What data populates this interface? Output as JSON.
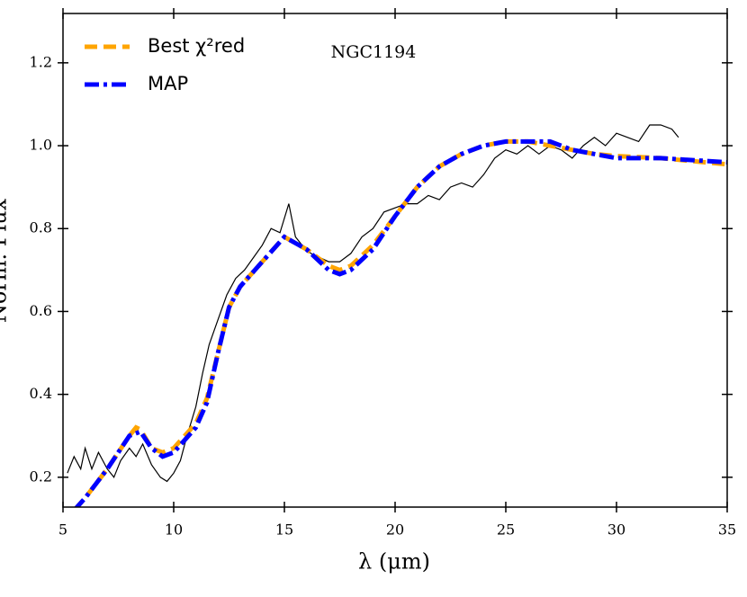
{
  "chart_data": {
    "type": "line",
    "annotation": "NGC1194",
    "xlabel": "λ (μm)",
    "ylabel": "Norm. Flux",
    "xlim": [
      5,
      35
    ],
    "ylim": [
      0.128,
      1.319
    ],
    "xticks": [
      5,
      10,
      15,
      20,
      25,
      30,
      35
    ],
    "yticks": [
      0.2,
      0.4,
      0.6,
      0.8,
      {
        "value": 1.0,
        "label": "1.0"
      },
      1.2
    ],
    "legend": "upper left",
    "series": [
      {
        "color": "#000000",
        "style": "solid",
        "x": [
          5.2,
          5.5,
          5.8,
          6.0,
          6.3,
          6.6,
          7.0,
          7.3,
          7.6,
          8.0,
          8.3,
          8.6,
          9.0,
          9.4,
          9.7,
          10.0,
          10.3,
          10.6,
          11.0,
          11.3,
          11.6,
          12.0,
          12.4,
          12.8,
          13.2,
          13.6,
          14.0,
          14.4,
          14.8,
          15.2,
          15.5,
          15.8,
          16.2,
          16.6,
          17.0,
          17.5,
          18.0,
          18.5,
          19.0,
          19.5,
          20.0,
          20.5,
          21.0,
          21.5,
          22.0,
          22.5,
          23.0,
          23.5,
          24.0,
          24.5,
          25.0,
          25.5,
          26.0,
          26.5,
          27.0,
          27.5,
          28.0,
          28.5,
          29.0,
          29.5,
          30.0,
          30.5,
          31.0,
          31.5,
          32.0,
          32.5,
          32.8
        ],
        "values": [
          0.21,
          0.25,
          0.22,
          0.27,
          0.22,
          0.26,
          0.22,
          0.2,
          0.24,
          0.27,
          0.25,
          0.28,
          0.23,
          0.2,
          0.19,
          0.21,
          0.24,
          0.3,
          0.37,
          0.45,
          0.52,
          0.58,
          0.64,
          0.68,
          0.7,
          0.73,
          0.76,
          0.8,
          0.79,
          0.86,
          0.78,
          0.76,
          0.74,
          0.73,
          0.72,
          0.72,
          0.74,
          0.78,
          0.8,
          0.84,
          0.85,
          0.86,
          0.86,
          0.88,
          0.87,
          0.9,
          0.91,
          0.9,
          0.93,
          0.97,
          0.99,
          0.98,
          1.0,
          0.98,
          1.0,
          0.99,
          0.97,
          1.0,
          1.02,
          1.0,
          1.03,
          1.02,
          1.01,
          1.05,
          1.05,
          1.04,
          1.02
        ]
      },
      {
        "name": "Best χ²red",
        "color": "#ffa500",
        "style": "dashed",
        "x": [
          5.5,
          6,
          7,
          8,
          8.3,
          8.5,
          9,
          9.5,
          10,
          11,
          11.5,
          12,
          12.5,
          13,
          14,
          15,
          16,
          17,
          17.5,
          18,
          19,
          20,
          21,
          22,
          23,
          24,
          25,
          26,
          27,
          28,
          29,
          30,
          32,
          35
        ],
        "values": [
          0.12,
          0.15,
          0.22,
          0.3,
          0.32,
          0.315,
          0.27,
          0.26,
          0.27,
          0.33,
          0.39,
          0.5,
          0.61,
          0.66,
          0.72,
          0.78,
          0.75,
          0.71,
          0.7,
          0.71,
          0.76,
          0.83,
          0.9,
          0.95,
          0.98,
          1.0,
          1.01,
          1.01,
          1.0,
          0.99,
          0.98,
          0.975,
          0.97,
          0.955
        ]
      },
      {
        "name": "MAP",
        "color": "#0000ff",
        "style": "dashdot",
        "x": [
          5.5,
          6,
          7,
          8,
          8.5,
          9,
          9.5,
          10,
          11,
          11.5,
          12,
          12.5,
          13,
          14,
          15,
          16,
          17,
          17.5,
          18,
          19,
          20,
          21,
          22,
          23,
          24,
          25,
          26,
          27,
          28,
          29,
          30,
          32,
          35
        ],
        "values": [
          0.12,
          0.15,
          0.22,
          0.3,
          0.31,
          0.27,
          0.25,
          0.26,
          0.32,
          0.38,
          0.5,
          0.61,
          0.66,
          0.72,
          0.78,
          0.75,
          0.7,
          0.69,
          0.7,
          0.75,
          0.83,
          0.9,
          0.95,
          0.98,
          1.0,
          1.01,
          1.01,
          1.01,
          0.99,
          0.98,
          0.97,
          0.97,
          0.96
        ]
      }
    ]
  }
}
